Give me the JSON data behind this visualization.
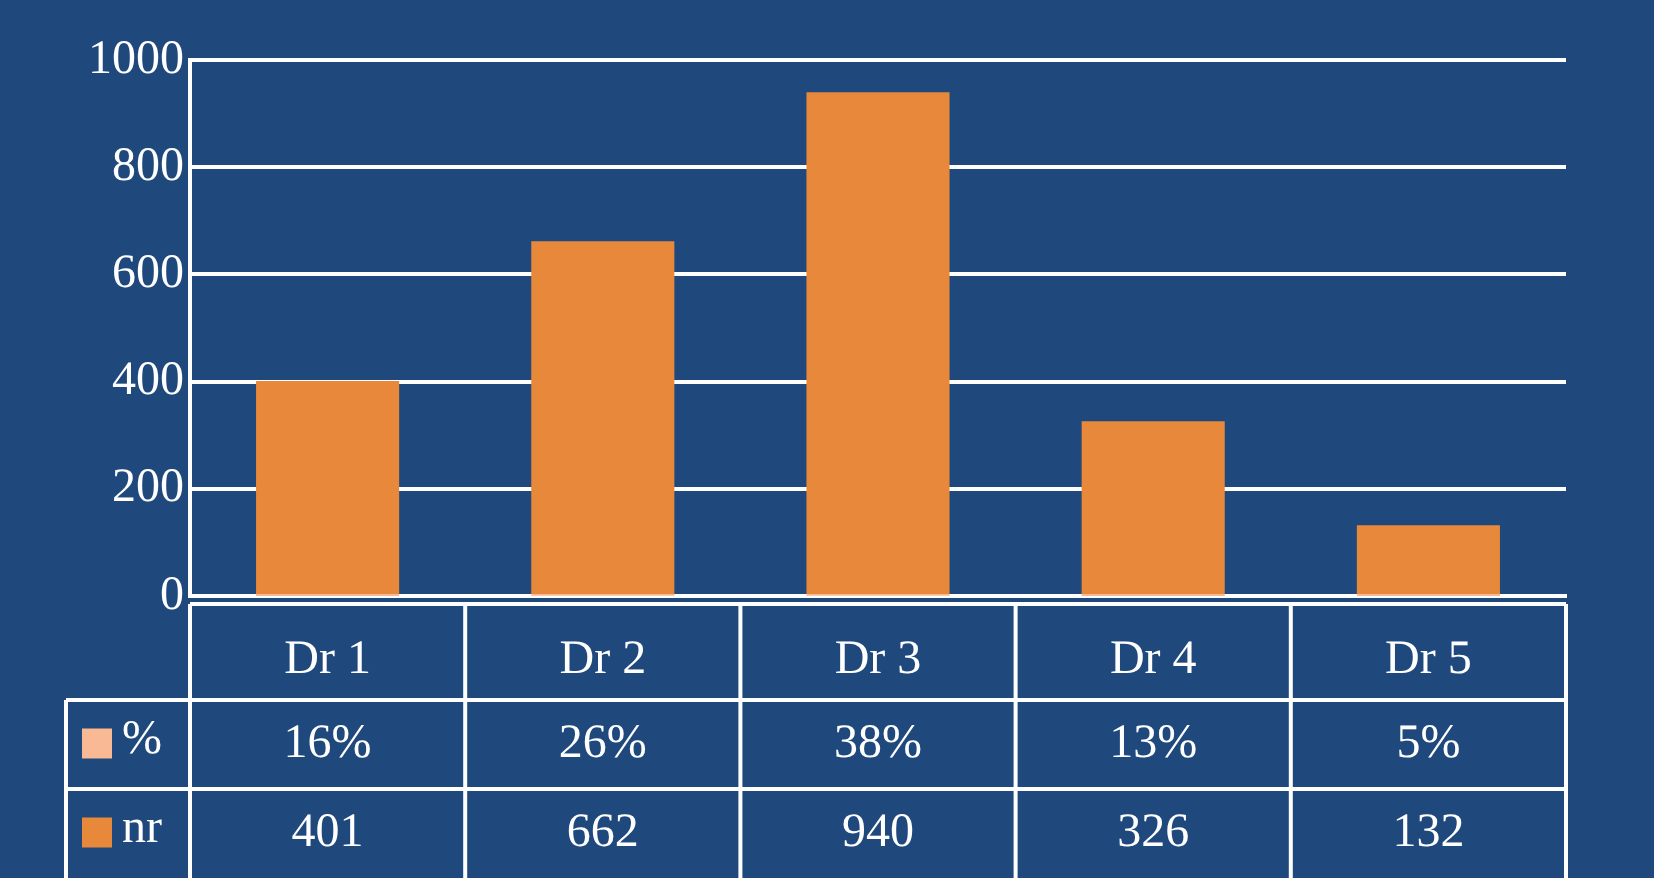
{
  "chart_data": {
    "type": "bar",
    "categories": [
      "Dr 1",
      "Dr 2",
      "Dr 3",
      "Dr 4",
      "Dr 5"
    ],
    "series": [
      {
        "name": "%",
        "color": "#f9b994",
        "values": [
          0.16,
          0.26,
          0.38,
          0.13,
          0.05
        ],
        "value_labels": [
          "16%",
          "26%",
          "38%",
          "13%",
          "5%"
        ]
      },
      {
        "name": "nr",
        "color": "#e8883a",
        "values": [
          401,
          662,
          940,
          326,
          132
        ],
        "value_labels": [
          "401",
          "662",
          "940",
          "326",
          "132"
        ]
      }
    ],
    "ylim": [
      0,
      1000
    ],
    "yticks": [
      0,
      200,
      400,
      600,
      800,
      1000
    ],
    "grid": "y",
    "legend": "bottom left"
  }
}
